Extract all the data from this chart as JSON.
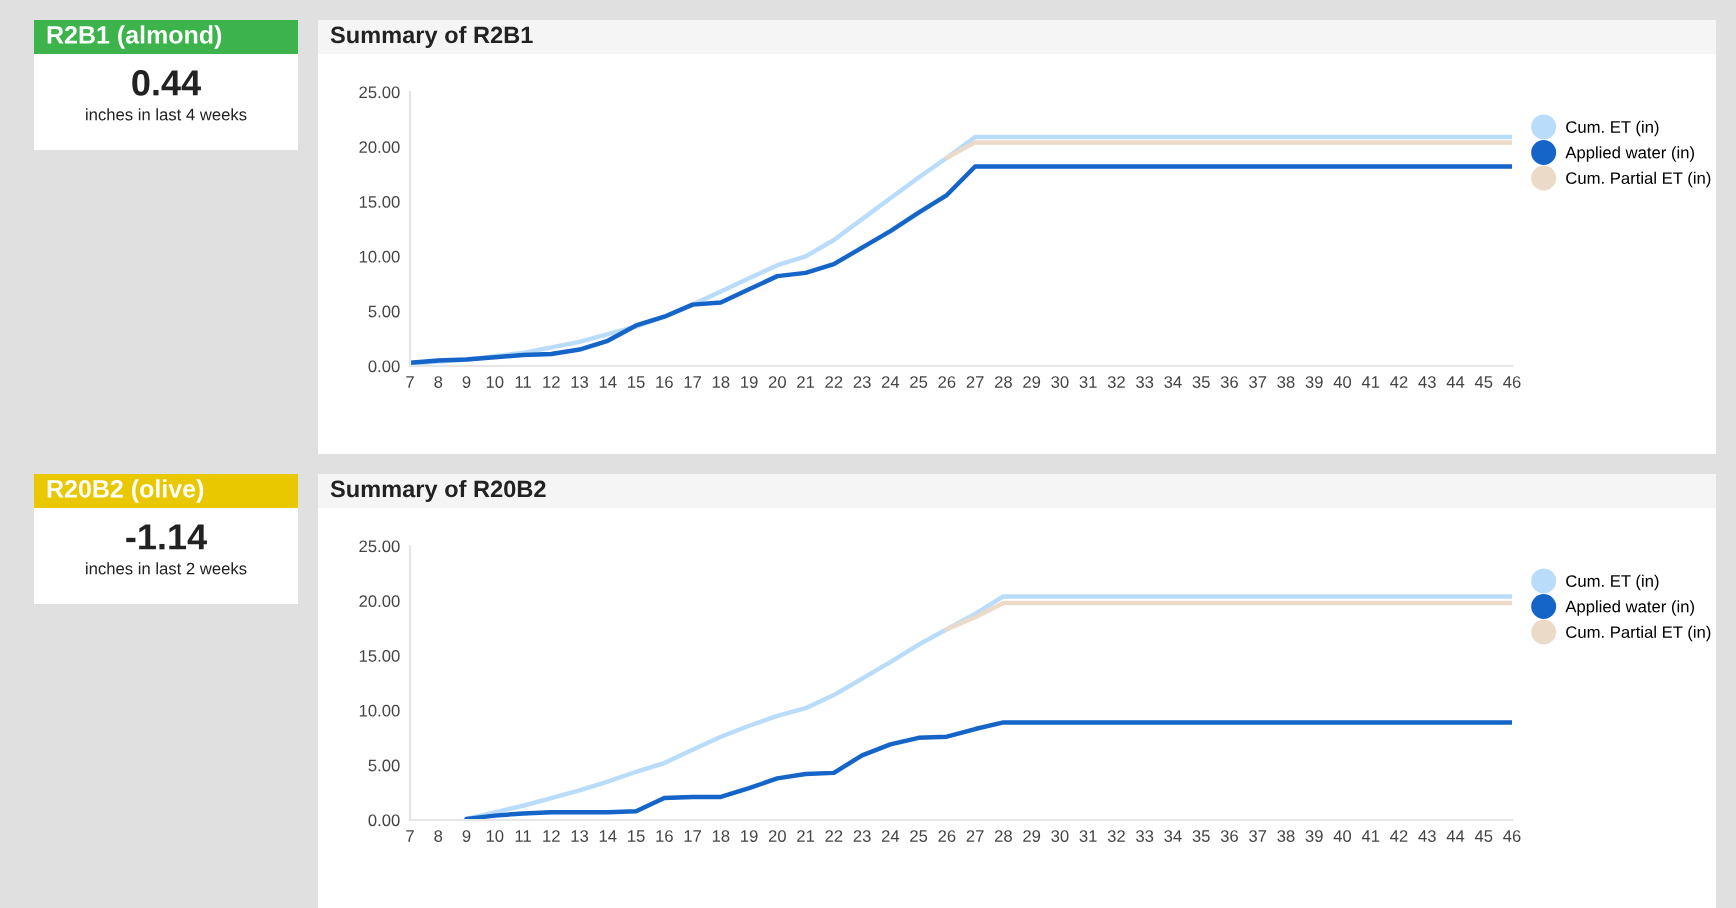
{
  "chart_data": [
    {
      "type": "other",
      "title": "R2B1 (almond)",
      "color": "#3cb44b",
      "annotations": [
        "0.44",
        "inches in last 4 weeks"
      ]
    },
    {
      "type": "line",
      "title": "Summary of R2B1",
      "categories": [
        "7",
        "8",
        "9",
        "10",
        "11",
        "12",
        "13",
        "14",
        "15",
        "16",
        "17",
        "18",
        "19",
        "20",
        "21",
        "22",
        "23",
        "24",
        "25",
        "26",
        "27",
        "28",
        "29",
        "30",
        "31",
        "32",
        "33",
        "34",
        "35",
        "36",
        "37",
        "38",
        "39",
        "40",
        "41",
        "42",
        "43",
        "44",
        "45",
        "46"
      ],
      "series": [
        {
          "name": "Cum. ET (in)",
          "color": "#b9dcfa",
          "values": [
            0.2,
            0.4,
            0.6,
            0.9,
            1.2,
            1.7,
            2.2,
            2.9,
            3.6,
            4.5,
            5.6,
            6.8,
            8.0,
            9.2,
            10.0,
            11.5,
            13.4,
            15.3,
            17.2,
            19.0,
            20.9,
            20.9,
            20.9,
            20.9,
            20.9,
            20.9,
            20.9,
            20.9,
            20.9,
            20.9,
            20.9,
            20.9,
            20.9,
            20.9,
            20.9,
            20.9,
            20.9,
            20.9,
            20.9,
            20.9
          ]
        },
        {
          "name": "Applied water (in)",
          "color": "#1565c8",
          "values": [
            0.3,
            0.5,
            0.6,
            0.8,
            1.0,
            1.1,
            1.5,
            2.3,
            3.7,
            4.5,
            5.6,
            5.8,
            7.0,
            8.2,
            8.5,
            9.3,
            10.8,
            12.3,
            14.0,
            15.6,
            18.2,
            18.2,
            18.2,
            18.2,
            18.2,
            18.2,
            18.2,
            18.2,
            18.2,
            18.2,
            18.2,
            18.2,
            18.2,
            18.2,
            18.2,
            18.2,
            18.2,
            18.2,
            18.2,
            18.2
          ]
        },
        {
          "name": "Cum. Partial ET (in)",
          "color": "#ecdac8",
          "values": [
            null,
            null,
            null,
            null,
            null,
            null,
            null,
            null,
            null,
            null,
            null,
            null,
            null,
            null,
            null,
            null,
            null,
            null,
            null,
            19.0,
            20.4,
            20.4,
            20.4,
            20.4,
            20.4,
            20.4,
            20.4,
            20.4,
            20.4,
            20.4,
            20.4,
            20.4,
            20.4,
            20.4,
            20.4,
            20.4,
            20.4,
            20.4,
            20.4,
            20.4
          ]
        }
      ],
      "ylim": [
        0,
        25
      ],
      "yticks": [
        {
          "value": 0,
          "label": "0.00"
        },
        {
          "value": 5,
          "label": "5.00"
        },
        {
          "value": 10,
          "label": "10.00"
        },
        {
          "value": 15,
          "label": "15.00"
        },
        {
          "value": 20,
          "label": "20.00"
        },
        {
          "value": 25,
          "label": "25.00"
        }
      ],
      "legend": "right",
      "grid": false
    },
    {
      "type": "other",
      "title": "R20B2 (olive)",
      "color": "#eac800",
      "annotations": [
        "-1.14",
        "inches in last 2 weeks"
      ]
    },
    {
      "type": "line",
      "title": "Summary of R20B2",
      "categories": [
        "7",
        "8",
        "9",
        "10",
        "11",
        "12",
        "13",
        "14",
        "15",
        "16",
        "17",
        "18",
        "19",
        "20",
        "21",
        "22",
        "23",
        "24",
        "25",
        "26",
        "27",
        "28",
        "29",
        "30",
        "31",
        "32",
        "33",
        "34",
        "35",
        "36",
        "37",
        "38",
        "39",
        "40",
        "41",
        "42",
        "43",
        "44",
        "45",
        "46"
      ],
      "series": [
        {
          "name": "Cum. ET (in)",
          "color": "#b9dcfa",
          "values": [
            null,
            null,
            0.1,
            0.7,
            1.3,
            2.0,
            2.7,
            3.5,
            4.4,
            5.2,
            6.4,
            7.6,
            8.6,
            9.5,
            10.2,
            11.4,
            12.9,
            14.4,
            16.0,
            17.4,
            18.8,
            20.4,
            20.4,
            20.4,
            20.4,
            20.4,
            20.4,
            20.4,
            20.4,
            20.4,
            20.4,
            20.4,
            20.4,
            20.4,
            20.4,
            20.4,
            20.4,
            20.4,
            20.4,
            20.4
          ]
        },
        {
          "name": "Applied water (in)",
          "color": "#1565c8",
          "values": [
            null,
            null,
            0.1,
            0.4,
            0.6,
            0.7,
            0.7,
            0.7,
            0.8,
            2.0,
            2.1,
            2.1,
            2.9,
            3.8,
            4.2,
            4.3,
            5.9,
            6.9,
            7.5,
            7.6,
            8.3,
            8.9,
            8.9,
            8.9,
            8.9,
            8.9,
            8.9,
            8.9,
            8.9,
            8.9,
            8.9,
            8.9,
            8.9,
            8.9,
            8.9,
            8.9,
            8.9,
            8.9,
            8.9,
            8.9
          ]
        },
        {
          "name": "Cum. Partial ET (in)",
          "color": "#ecdac8",
          "values": [
            null,
            null,
            null,
            null,
            null,
            null,
            null,
            null,
            null,
            null,
            null,
            null,
            null,
            null,
            null,
            null,
            null,
            null,
            null,
            17.4,
            18.5,
            19.8,
            19.8,
            19.8,
            19.8,
            19.8,
            19.8,
            19.8,
            19.8,
            19.8,
            19.8,
            19.8,
            19.8,
            19.8,
            19.8,
            19.8,
            19.8,
            19.8,
            19.8,
            19.8
          ]
        }
      ],
      "ylim": [
        0,
        25
      ],
      "yticks": [
        {
          "value": 0,
          "label": "0.00"
        },
        {
          "value": 5,
          "label": "5.00"
        },
        {
          "value": 10,
          "label": "10.00"
        },
        {
          "value": 15,
          "label": "15.00"
        },
        {
          "value": 20,
          "label": "20.00"
        },
        {
          "value": 25,
          "label": "25.00"
        }
      ],
      "legend": "right",
      "grid": false
    }
  ]
}
